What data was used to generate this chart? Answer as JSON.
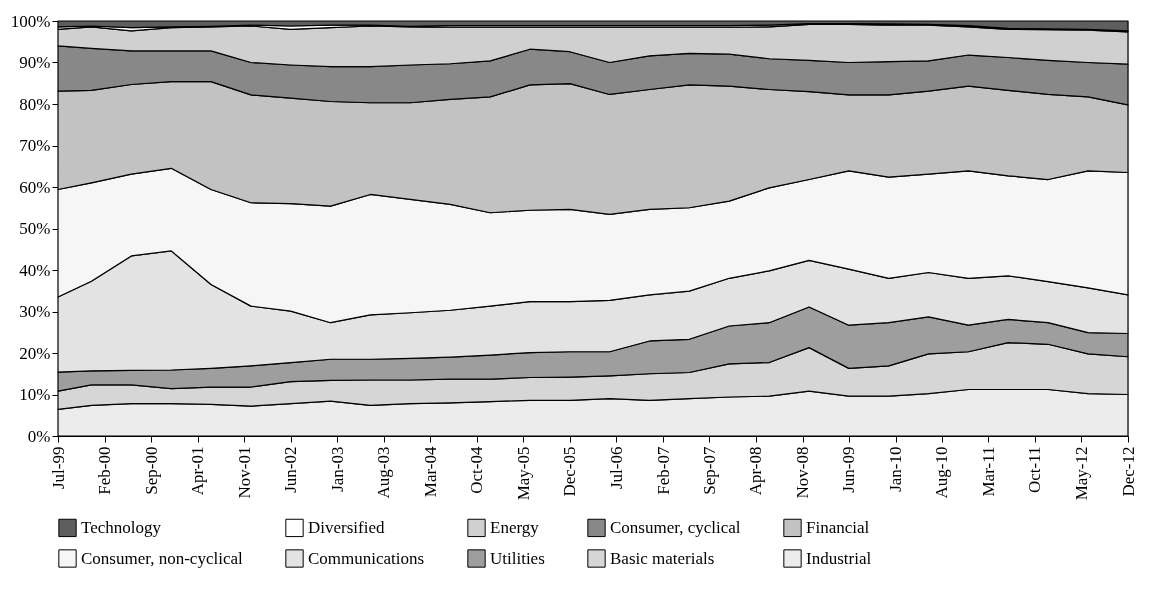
{
  "chart_data": {
    "type": "area",
    "stacked": true,
    "legend": "bottom",
    "x": [
      "1999-07",
      "1999-12",
      "2000-06",
      "2000-12",
      "2001-06",
      "2001-12",
      "2002-06",
      "2002-12",
      "2003-06",
      "2003-12",
      "2004-06",
      "2004-12",
      "2005-06",
      "2005-12",
      "2006-06",
      "2006-12",
      "2007-06",
      "2007-12",
      "2008-06",
      "2008-12",
      "2009-06",
      "2009-12",
      "2010-06",
      "2010-12",
      "2011-06",
      "2011-12",
      "2012-06",
      "2012-12"
    ],
    "xlim": [
      "1999-07",
      "2012-12"
    ],
    "xticks": [
      {
        "value": "1999-07",
        "label": "Jul-99"
      },
      {
        "value": "2000-02",
        "label": "Feb-00"
      },
      {
        "value": "2000-09",
        "label": "Sep-00"
      },
      {
        "value": "2001-04",
        "label": "Apr-01"
      },
      {
        "value": "2001-11",
        "label": "Nov-01"
      },
      {
        "value": "2002-06",
        "label": "Jun-02"
      },
      {
        "value": "2003-01",
        "label": "Jan-03"
      },
      {
        "value": "2003-08",
        "label": "Aug-03"
      },
      {
        "value": "2004-03",
        "label": "Mar-04"
      },
      {
        "value": "2004-10",
        "label": "Oct-04"
      },
      {
        "value": "2005-05",
        "label": "May-05"
      },
      {
        "value": "2005-12",
        "label": "Dec-05"
      },
      {
        "value": "2006-07",
        "label": "Jul-06"
      },
      {
        "value": "2007-02",
        "label": "Feb-07"
      },
      {
        "value": "2007-09",
        "label": "Sep-07"
      },
      {
        "value": "2008-04",
        "label": "Apr-08"
      },
      {
        "value": "2008-11",
        "label": "Nov-08"
      },
      {
        "value": "2009-06",
        "label": "Jun-09"
      },
      {
        "value": "2010-01",
        "label": "Jan-10"
      },
      {
        "value": "2010-08",
        "label": "Aug-10"
      },
      {
        "value": "2011-03",
        "label": "Mar-11"
      },
      {
        "value": "2011-10",
        "label": "Oct-11"
      },
      {
        "value": "2012-05",
        "label": "May-12"
      },
      {
        "value": "2012-12",
        "label": "Dec-12"
      }
    ],
    "ylim": [
      0,
      100
    ],
    "yticks": [
      {
        "value": 0,
        "label": "0%"
      },
      {
        "value": 10,
        "label": "10%"
      },
      {
        "value": 20,
        "label": "20%"
      },
      {
        "value": 30,
        "label": "30%"
      },
      {
        "value": 40,
        "label": "40%"
      },
      {
        "value": 50,
        "label": "50%"
      },
      {
        "value": 60,
        "label": "60%"
      },
      {
        "value": 70,
        "label": "70%"
      },
      {
        "value": 80,
        "label": "80%"
      },
      {
        "value": 90,
        "label": "90%"
      },
      {
        "value": 100,
        "label": "100%"
      }
    ],
    "series": [
      {
        "name": "Industrial",
        "color": "#ececec",
        "values": [
          6.4,
          7.4,
          7.8,
          7.8,
          7.6,
          7.2,
          7.8,
          8.4,
          7.4,
          7.8,
          8.0,
          8.3,
          8.6,
          8.6,
          9.0,
          8.6,
          9.0,
          9.4,
          9.6,
          10.8,
          9.6,
          9.6,
          10.2,
          11.2,
          11.2,
          11.2,
          10.2,
          10.0
        ]
      },
      {
        "name": "Basic materials",
        "color": "#d6d6d6",
        "values": [
          4.4,
          4.9,
          4.5,
          3.6,
          4.2,
          4.6,
          5.3,
          5.0,
          6.1,
          5.7,
          5.7,
          5.4,
          5.5,
          5.6,
          5.5,
          6.4,
          6.3,
          8.0,
          8.1,
          10.5,
          6.7,
          7.3,
          9.6,
          9.1,
          11.3,
          10.9,
          9.6,
          9.1
        ]
      },
      {
        "name": "Utilities",
        "color": "#9e9e9e",
        "values": [
          4.6,
          3.4,
          3.5,
          4.5,
          4.5,
          5.1,
          4.6,
          5.1,
          5.0,
          5.2,
          5.3,
          5.8,
          6.0,
          6.1,
          5.8,
          7.9,
          8.0,
          9.1,
          9.6,
          9.8,
          10.4,
          10.4,
          8.9,
          6.4,
          5.6,
          5.2,
          5.1,
          5.6
        ]
      },
      {
        "name": "Communications",
        "color": "#e3e3e3",
        "values": [
          18.1,
          21.6,
          27.6,
          28.7,
          20.2,
          14.4,
          12.4,
          8.8,
          10.7,
          11.0,
          11.3,
          11.8,
          12.3,
          12.1,
          12.4,
          11.1,
          11.6,
          11.5,
          12.5,
          11.2,
          13.5,
          10.7,
          10.7,
          11.3,
          10.5,
          9.9,
          10.8,
          9.3
        ]
      },
      {
        "name": "Consumer, non-cyclical",
        "color": "#f6f6f6",
        "values": [
          25.9,
          23.7,
          19.7,
          19.9,
          22.9,
          24.9,
          25.9,
          28.1,
          29.0,
          27.3,
          25.5,
          22.5,
          22.0,
          22.2,
          20.7,
          20.6,
          20.1,
          18.6,
          20.0,
          19.5,
          23.7,
          24.4,
          23.7,
          25.9,
          24.1,
          24.6,
          28.2,
          29.5
        ]
      },
      {
        "name": "Financial",
        "color": "#c2c2c2",
        "values": [
          23.7,
          22.3,
          21.6,
          20.9,
          26.0,
          26.0,
          25.4,
          25.2,
          22.1,
          23.3,
          25.3,
          27.9,
          30.2,
          30.3,
          28.9,
          28.9,
          29.6,
          27.7,
          23.7,
          21.2,
          18.3,
          19.8,
          20.0,
          20.4,
          20.6,
          20.5,
          17.8,
          16.3
        ]
      },
      {
        "name": "Consumer, cyclical",
        "color": "#888888",
        "values": [
          10.9,
          10.1,
          8.1,
          7.4,
          7.4,
          7.8,
          8.0,
          8.4,
          8.7,
          9.1,
          8.6,
          8.7,
          8.6,
          7.7,
          7.7,
          8.1,
          7.6,
          7.7,
          7.4,
          7.5,
          7.8,
          8.0,
          7.3,
          7.5,
          7.9,
          8.2,
          8.3,
          9.8
        ]
      },
      {
        "name": "Energy",
        "color": "#d0d0d0",
        "values": [
          4.0,
          5.2,
          4.8,
          5.6,
          5.8,
          8.8,
          8.6,
          9.4,
          9.8,
          9.2,
          8.8,
          8.1,
          5.3,
          5.9,
          8.5,
          6.9,
          6.3,
          6.5,
          7.7,
          8.7,
          9.2,
          8.8,
          8.6,
          6.8,
          6.8,
          7.4,
          7.8,
          7.8
        ]
      },
      {
        "name": "Diversified",
        "color": "#ffffff",
        "values": [
          0.6,
          0.2,
          0.8,
          0.2,
          0.1,
          0.2,
          0.8,
          0.6,
          0.2,
          0.1,
          0.4,
          0.4,
          0.4,
          0.4,
          0.4,
          0.4,
          0.4,
          0.4,
          0.4,
          0.2,
          0.2,
          0.3,
          0.2,
          0.3,
          0.2,
          0.2,
          0.2,
          0.2
        ]
      },
      {
        "name": "Technology",
        "color": "#5e5e5e",
        "values": [
          1.4,
          1.2,
          1.6,
          1.4,
          1.3,
          1.0,
          1.2,
          1.0,
          1.0,
          1.3,
          1.1,
          1.1,
          1.1,
          1.1,
          1.1,
          1.1,
          1.1,
          1.1,
          1.0,
          0.6,
          0.6,
          0.7,
          0.8,
          1.1,
          1.8,
          1.9,
          2.0,
          2.4
        ]
      }
    ]
  }
}
